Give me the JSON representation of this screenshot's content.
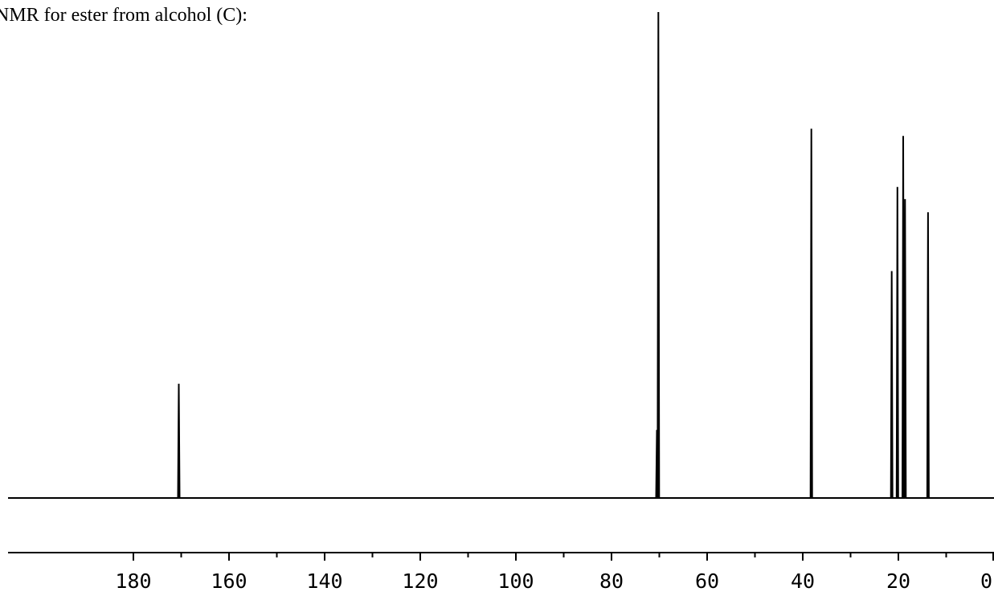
{
  "caption": "NMR for ester from alcohol (C):",
  "chart_data": {
    "type": "line",
    "title": "NMR for ester from alcohol (C):",
    "xlabel": "",
    "ylabel": "",
    "x_reversed": true,
    "xlim": [
      184,
      0
    ],
    "ylim": [
      0,
      100
    ],
    "x_ticks": [
      180,
      160,
      140,
      120,
      100,
      80,
      60,
      40,
      20,
      0
    ],
    "x_ticks_minor": [
      170,
      150,
      130,
      110,
      90,
      70,
      50,
      30,
      10
    ],
    "tick_labels": [
      "180",
      "160",
      "140",
      "120",
      "100",
      "80",
      "60",
      "40",
      "20",
      "0"
    ],
    "grid": false,
    "peaks": [
      {
        "x": 170.5,
        "y": 23.5
      },
      {
        "x": 70.5,
        "y": 14.0
      },
      {
        "x": 70.2,
        "y": 100.0
      },
      {
        "x": 38.2,
        "y": 76.0
      },
      {
        "x": 21.4,
        "y": 46.7
      },
      {
        "x": 20.2,
        "y": 64.0
      },
      {
        "x": 19.0,
        "y": 74.5
      },
      {
        "x": 18.6,
        "y": 61.5
      },
      {
        "x": 13.8,
        "y": 58.8
      }
    ],
    "line_color": "#000000"
  }
}
